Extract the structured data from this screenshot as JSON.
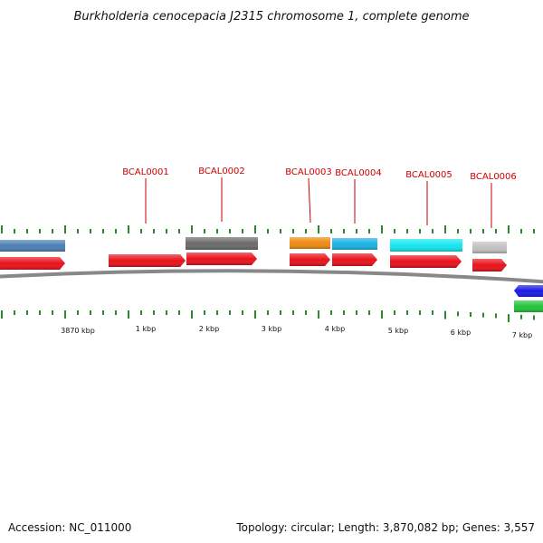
{
  "title": "Burkholderia cenocepacia J2315 chromosome 1, complete genome",
  "footer": {
    "accession": "Accession: NC_011000",
    "topology": "Topology: circular; Length: 3,870,082 bp; Genes: 3,557"
  },
  "genes": [
    {
      "name": "BCAL0001",
      "color": "#e8111b"
    },
    {
      "name": "BCAL0002",
      "color": "#e8111b"
    },
    {
      "name": "BCAL0003",
      "color": "#e8111b"
    },
    {
      "name": "BCAL0004",
      "color": "#e8111b"
    },
    {
      "name": "BCAL0005",
      "color": "#e8111b"
    },
    {
      "name": "BCAL0006",
      "color": "#e8111b"
    }
  ],
  "cog_colors": [
    "#4a7fb5",
    "#6a6a6a",
    "#f08a10",
    "#19b2e6",
    "#14e6ee",
    "#c0c0c0",
    "#1a1ae6",
    "#22c43a"
  ],
  "scale_labels": [
    "3870 kbp",
    "1 kbp",
    "2 kbp",
    "3 kbp",
    "4 kbp",
    "5 kbp",
    "6 kbp",
    "7 kbp"
  ],
  "colors": {
    "backbone": "#888888",
    "tick": "#2a8a2a",
    "label_line": "#cc0000"
  }
}
